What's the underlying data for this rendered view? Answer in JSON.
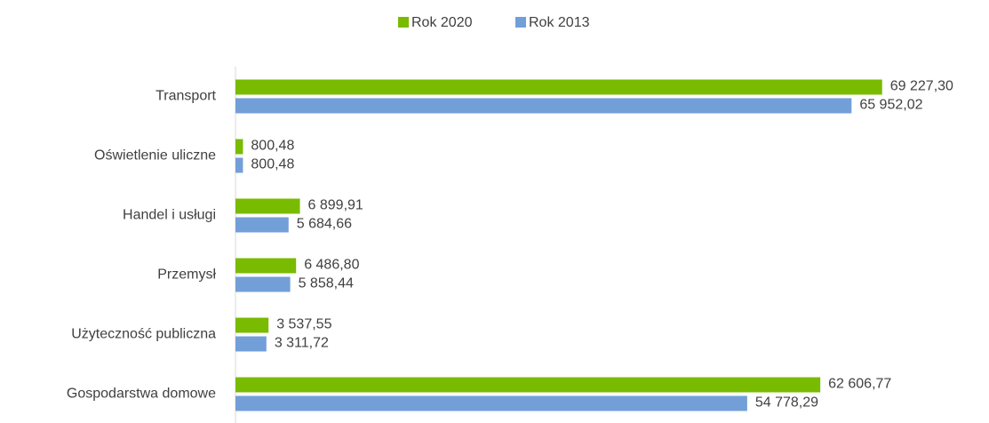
{
  "chart_data": {
    "type": "hbar",
    "categories": [
      "Transport",
      "Oświetlenie uliczne",
      "Handel i usługi",
      "Przemysł",
      "Użyteczność publiczna",
      "Gospodarstwa domowe"
    ],
    "series": [
      {
        "name": "Rok 2020",
        "color": "#78bb00",
        "values": [
          69227.3,
          800.48,
          6899.91,
          6486.8,
          3537.55,
          62606.77
        ],
        "value_labels": [
          "69 227,30",
          "800,48",
          "6 899,91",
          "6 486,80",
          "3 537,55",
          "62 606,77"
        ]
      },
      {
        "name": "Rok 2013",
        "color": "#729fd8",
        "values": [
          65952.02,
          800.48,
          5684.66,
          5858.44,
          3311.72,
          54778.29
        ],
        "value_labels": [
          "65 952,02",
          "800,48",
          "5 684,66",
          "5 858,44",
          "3 311,72",
          "54 778,29"
        ]
      }
    ],
    "xlim": [
      0,
      80000
    ],
    "legend": "top"
  }
}
